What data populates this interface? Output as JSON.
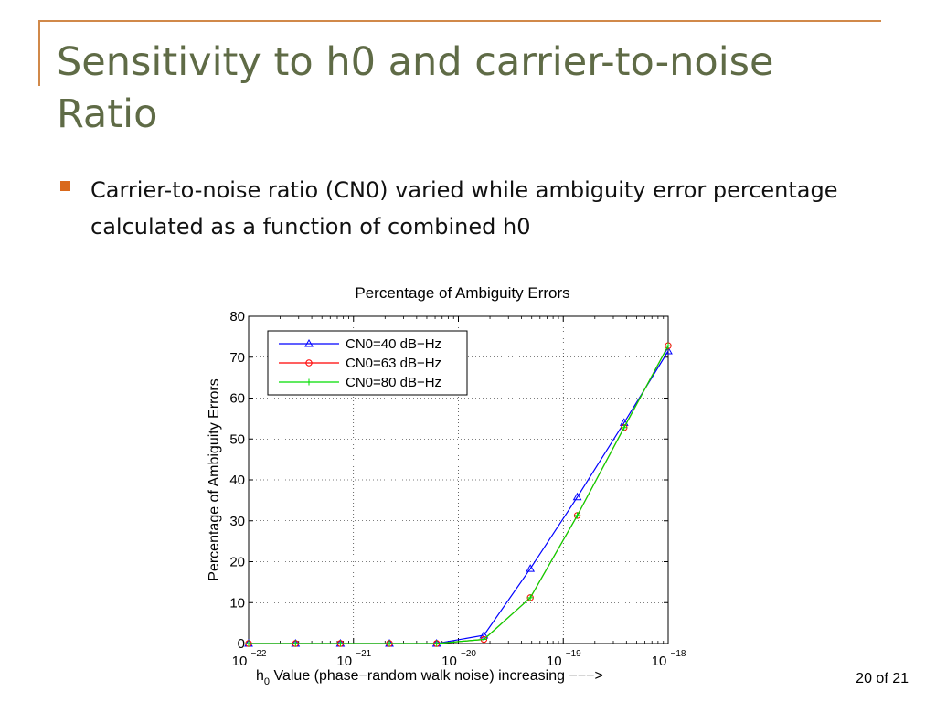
{
  "slide": {
    "title": "Sensitivity to h0 and carrier-to-noise Ratio",
    "bullet": "Carrier-to-noise ratio (CN0) varied while ambiguity error percentage calculated as a function of combined h0",
    "page_number": "20 of 21"
  },
  "colors": {
    "title": "#5f6b46",
    "accent_rule": "#d1894a",
    "bullet": "#d9691c",
    "series": [
      "#0000ff",
      "#ff0000",
      "#00dd00"
    ]
  },
  "chart_data": {
    "type": "line",
    "title": "Percentage of Ambiguity Errors",
    "xlabel": "h0 Value (phase−random walk noise) increasing −−−>",
    "xlabel_parts": {
      "main": "h",
      "subscript": "0",
      "rest": " Value (phase−random walk noise) increasing −−−>"
    },
    "ylabel": "Percentage of Ambiguity Errors",
    "xscale": "log",
    "xlim": [
      1e-22,
      1e-18
    ],
    "ylim": [
      0,
      80
    ],
    "x_ticks": [
      {
        "base": "10",
        "exp": "−22",
        "value": 1e-22
      },
      {
        "base": "10",
        "exp": "−21",
        "value": 1e-21
      },
      {
        "base": "10",
        "exp": "−20",
        "value": 1e-20
      },
      {
        "base": "10",
        "exp": "−19",
        "value": 1e-19
      },
      {
        "base": "10",
        "exp": "−18",
        "value": 1e-18
      }
    ],
    "y_ticks": [
      "0",
      "10",
      "20",
      "30",
      "40",
      "50",
      "60",
      "70",
      "80"
    ],
    "grid": true,
    "legend_position": "top-left",
    "x": [
      1e-22,
      2.8e-22,
      7.5e-22,
      2.2e-21,
      6.2e-21,
      1.75e-20,
      4.85e-20,
      1.36e-19,
      3.8e-19,
      1e-18
    ],
    "series": [
      {
        "name": "CN0=40 dB−Hz",
        "marker": "triangle",
        "color": "#0000ff",
        "values": [
          0,
          0,
          0,
          0,
          0,
          2,
          18.3,
          35.8,
          54,
          71.5
        ]
      },
      {
        "name": "CN0=63 dB−Hz",
        "marker": "circle",
        "color": "#ff0000",
        "values": [
          0,
          0,
          0,
          0,
          0,
          1,
          11.2,
          31.3,
          52.8,
          72.8
        ]
      },
      {
        "name": "CN0=80 dB−Hz",
        "marker": "plus",
        "color": "#00dd00",
        "values": [
          0,
          0,
          0,
          0,
          0,
          1,
          11.2,
          31.3,
          52.8,
          72.8
        ]
      }
    ]
  }
}
